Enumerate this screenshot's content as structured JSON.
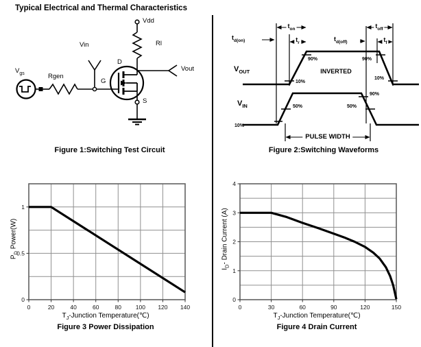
{
  "title": "Typical Electrical and Thermal Characteristics",
  "figure1": {
    "caption": "Figure 1:Switching Test Circuit",
    "labels": {
      "vgs_base": "V",
      "vgs_sub": "gs",
      "rgen": "Rgen",
      "vin": "Vin",
      "g": "G",
      "d": "D",
      "s": "S",
      "vdd": "Vdd",
      "rl": "Rl",
      "vout": "Vout"
    }
  },
  "figure2": {
    "caption": "Figure 2:Switching Waveforms",
    "timing": {
      "td_on": {
        "base": "t",
        "sub": "d(on)"
      },
      "t_on": {
        "base": "t",
        "sub": "on"
      },
      "t_r": {
        "base": "t",
        "sub": "r"
      },
      "td_off": {
        "base": "t",
        "sub": "d(off)"
      },
      "t_off": {
        "base": "t",
        "sub": "off"
      },
      "t_f": {
        "base": "t",
        "sub": "f"
      }
    },
    "signals": {
      "vout_base": "V",
      "vout_sub": "OUT",
      "vin_base": "V",
      "vin_sub": "IN"
    },
    "annotations": {
      "inverted": "INVERTED",
      "pulse_width": "PULSE WIDTH",
      "out_rise_10": "10%",
      "out_rise_90": "90%",
      "out_fall_90": "90%",
      "out_fall_10": "10%",
      "in_rise_10": "10%",
      "in_rise_50": "50%",
      "in_fall_90": "90%",
      "in_fall_50": "50%"
    }
  },
  "chart_data": [
    {
      "id": "fig3",
      "type": "line",
      "title": "Figure 3 Power Dissipation",
      "xlabel": {
        "base": "T",
        "sub": "J",
        "rest": "-Junction Temperature(℃)"
      },
      "ylabel": {
        "base": "P",
        "sub": "D",
        "rest": " Power(W)"
      },
      "xlim": [
        0,
        140
      ],
      "ylim": [
        0,
        1.25
      ],
      "xgrid": 20,
      "ygrid": 0.25,
      "grid": true,
      "legend": "none",
      "xticks": [
        0,
        20,
        40,
        60,
        80,
        100,
        120,
        140
      ],
      "yticks": [
        {
          "v": 0,
          "label": "0"
        },
        {
          "v": 0.5,
          "label": "0.5"
        },
        {
          "v": 1,
          "label": "1"
        }
      ],
      "series": [
        {
          "name": "power-derating",
          "points": [
            [
              0,
              1
            ],
            [
              20,
              1
            ],
            [
              140,
              0.08
            ]
          ]
        }
      ]
    },
    {
      "id": "fig4",
      "type": "line",
      "title": "Figure 4 Drain Current",
      "xlabel": {
        "base": "T",
        "sub": "J",
        "rest": "-Junction Temperature(℃)"
      },
      "ylabel": {
        "base": "I",
        "sub": "D",
        "rest": "- Drain Current (A)"
      },
      "xlim": [
        0,
        150
      ],
      "ylim": [
        0,
        4
      ],
      "xgrid": 30,
      "ygrid": 0.5,
      "grid": true,
      "legend": "none",
      "xticks": [
        0,
        30,
        60,
        90,
        120,
        150
      ],
      "yticks": [
        {
          "v": 0,
          "label": "0"
        },
        {
          "v": 1,
          "label": "1"
        },
        {
          "v": 2,
          "label": "2"
        },
        {
          "v": 3,
          "label": "3"
        },
        {
          "v": 4,
          "label": "4"
        }
      ],
      "series": [
        {
          "name": "drain-current-derating",
          "points": [
            [
              0,
              3
            ],
            [
              30,
              3
            ],
            [
              45,
              2.85
            ],
            [
              60,
              2.65
            ],
            [
              75,
              2.47
            ],
            [
              90,
              2.28
            ],
            [
              100,
              2.15
            ],
            [
              110,
              2.0
            ],
            [
              120,
              1.82
            ],
            [
              128,
              1.62
            ],
            [
              134,
              1.42
            ],
            [
              140,
              1.12
            ],
            [
              144,
              0.82
            ],
            [
              147,
              0.5
            ],
            [
              150,
              0.02
            ]
          ]
        }
      ]
    }
  ]
}
